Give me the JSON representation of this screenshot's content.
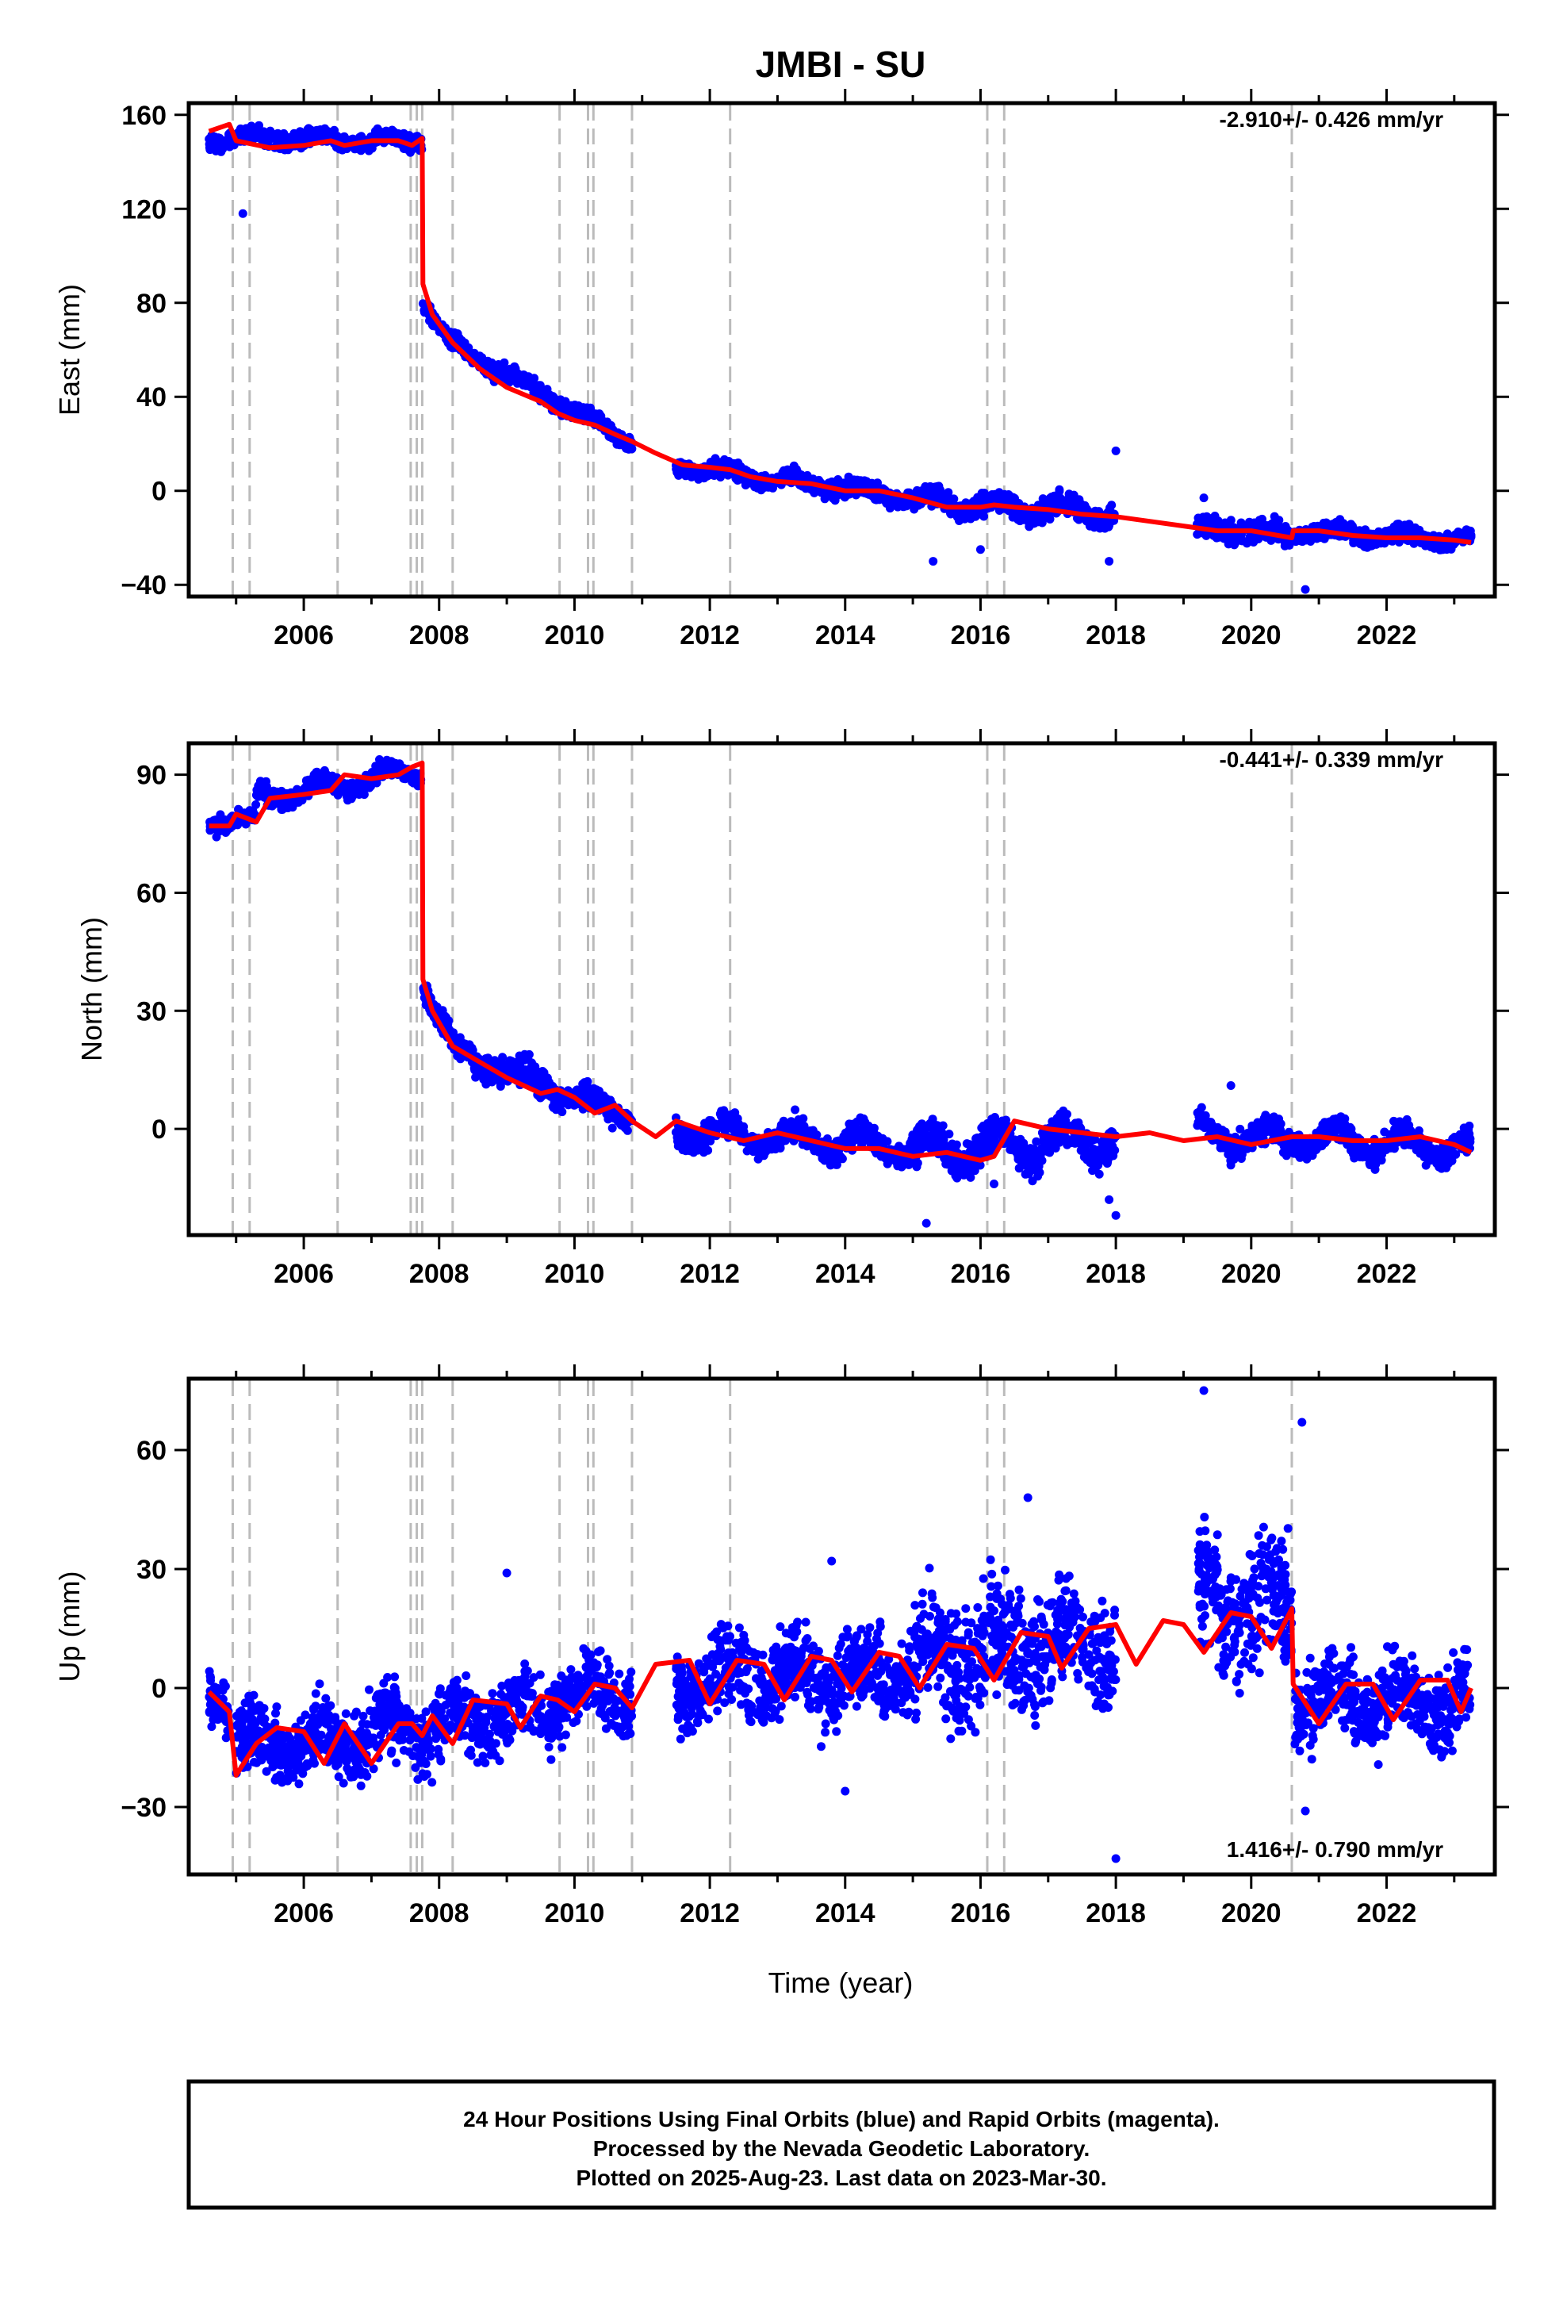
{
  "title": "JMBI - SU",
  "xlabel": "Time (year)",
  "footer": {
    "line1": "24 Hour Positions Using Final Orbits (blue) and Rapid Orbits (magenta).",
    "line2": "Processed by the Nevada Geodetic Laboratory.",
    "line3": "Plotted on 2025-Aug-23. Last data on 2023-Mar-30."
  },
  "colors": {
    "points": "#0000ff",
    "model": "#ff0000",
    "steps": "#bbbbbb"
  },
  "chart_data": [
    {
      "type": "scatter",
      "component": "east",
      "ylabel": "East (mm)",
      "rate": "-2.910+/- 0.426 mm/yr",
      "xlim": [
        2004.3,
        2023.6
      ],
      "ylim": [
        -45,
        165
      ],
      "yticks": [
        -40,
        0,
        40,
        80,
        120,
        160
      ],
      "yticklabels": [
        "−40",
        "0",
        "40",
        "80",
        "120",
        "160"
      ],
      "xticks": [
        2006,
        2008,
        2010,
        2012,
        2014,
        2016,
        2018,
        2020,
        2022
      ],
      "xticklabels": [
        "2006",
        "2008",
        "2010",
        "2012",
        "2014",
        "2016",
        "2018",
        "2020",
        "2022"
      ],
      "model": [
        [
          2004.6,
          153
        ],
        [
          2004.9,
          156
        ],
        [
          2005.0,
          149
        ],
        [
          2005.5,
          146
        ],
        [
          2006.0,
          147
        ],
        [
          2006.4,
          149
        ],
        [
          2006.6,
          147
        ],
        [
          2007.0,
          149
        ],
        [
          2007.4,
          149
        ],
        [
          2007.6,
          147
        ],
        [
          2007.75,
          150
        ],
        [
          2007.76,
          88
        ],
        [
          2007.9,
          75
        ],
        [
          2008.2,
          63
        ],
        [
          2008.6,
          52
        ],
        [
          2009.0,
          44
        ],
        [
          2009.5,
          38
        ],
        [
          2009.75,
          33
        ],
        [
          2010.0,
          30
        ],
        [
          2010.3,
          28
        ],
        [
          2010.6,
          24
        ],
        [
          2010.85,
          21
        ],
        [
          2011.2,
          16
        ],
        [
          2011.6,
          11
        ],
        [
          2012.0,
          10
        ],
        [
          2012.3,
          9
        ],
        [
          2012.6,
          6
        ],
        [
          2013.0,
          4
        ],
        [
          2013.5,
          3
        ],
        [
          2014.0,
          0
        ],
        [
          2014.5,
          0
        ],
        [
          2015.0,
          -3
        ],
        [
          2015.5,
          -7
        ],
        [
          2016.0,
          -7
        ],
        [
          2016.2,
          -6
        ],
        [
          2016.5,
          -7
        ],
        [
          2017.0,
          -8
        ],
        [
          2017.5,
          -10
        ],
        [
          2018.0,
          -11
        ],
        [
          2018.5,
          -13
        ],
        [
          2019.0,
          -15
        ],
        [
          2019.5,
          -17
        ],
        [
          2020.0,
          -17
        ],
        [
          2020.6,
          -20
        ],
        [
          2020.62,
          -17
        ],
        [
          2021.0,
          -17
        ],
        [
          2021.5,
          -19
        ],
        [
          2022.0,
          -20
        ],
        [
          2022.5,
          -20
        ],
        [
          2023.0,
          -21
        ],
        [
          2023.25,
          -22
        ]
      ],
      "points": {
        "segments": [
          {
            "x": [
              2004.6,
              2007.75
            ],
            "y": [
              150,
              149
            ],
            "spread": 3,
            "amp": 2
          },
          {
            "x": [
              2007.76,
              2008.2
            ],
            "y": [
              80,
              62
            ],
            "spread": 3,
            "amp": 1
          },
          {
            "x": [
              2008.2,
              2010.85
            ],
            "y": [
              62,
              21
            ],
            "spread": 3,
            "amp": 2
          },
          {
            "x": [
              2011.5,
              2015.0
            ],
            "y": [
              11,
              -3
            ],
            "spread": 3,
            "amp": 2
          },
          {
            "x": [
              2015.0,
              2018.0
            ],
            "y": [
              -4,
              -10
            ],
            "spread": 4,
            "amp": 3
          },
          {
            "x": [
              2019.2,
              2020.6
            ],
            "y": [
              -16,
              -19
            ],
            "spread": 4,
            "amp": 2
          },
          {
            "x": [
              2020.62,
              2023.25
            ],
            "y": [
              -17,
              -21
            ],
            "spread": 3,
            "amp": 2
          }
        ],
        "outliers": [
          [
            2005.1,
            118
          ],
          [
            2018.0,
            17
          ],
          [
            2019.3,
            -3
          ],
          [
            2020.8,
            -42
          ],
          [
            2015.3,
            -30
          ],
          [
            2017.9,
            -30
          ],
          [
            2016.0,
            -25
          ]
        ]
      }
    },
    {
      "type": "scatter",
      "component": "north",
      "ylabel": "North (mm)",
      "rate": "-0.441+/- 0.339 mm/yr",
      "xlim": [
        2004.3,
        2023.6
      ],
      "ylim": [
        -27,
        98
      ],
      "yticks": [
        0,
        30,
        60,
        90
      ],
      "yticklabels": [
        "0",
        "30",
        "60",
        "90"
      ],
      "xticks": [
        2006,
        2008,
        2010,
        2012,
        2014,
        2016,
        2018,
        2020,
        2022
      ],
      "xticklabels": [
        "2006",
        "2008",
        "2010",
        "2012",
        "2014",
        "2016",
        "2018",
        "2020",
        "2022"
      ],
      "model": [
        [
          2004.6,
          77
        ],
        [
          2004.9,
          77
        ],
        [
          2005.0,
          80
        ],
        [
          2005.3,
          78
        ],
        [
          2005.5,
          84
        ],
        [
          2006.0,
          85
        ],
        [
          2006.4,
          86
        ],
        [
          2006.6,
          90
        ],
        [
          2007.0,
          89
        ],
        [
          2007.4,
          90
        ],
        [
          2007.6,
          92
        ],
        [
          2007.75,
          93
        ],
        [
          2007.76,
          38
        ],
        [
          2007.9,
          30
        ],
        [
          2008.2,
          21
        ],
        [
          2008.6,
          17
        ],
        [
          2009.0,
          13
        ],
        [
          2009.5,
          9
        ],
        [
          2009.75,
          10
        ],
        [
          2010.0,
          8
        ],
        [
          2010.3,
          4
        ],
        [
          2010.6,
          6
        ],
        [
          2010.85,
          2
        ],
        [
          2011.2,
          -2
        ],
        [
          2011.5,
          2
        ],
        [
          2012.0,
          -1
        ],
        [
          2012.5,
          -3
        ],
        [
          2013.0,
          -1
        ],
        [
          2013.5,
          -3
        ],
        [
          2014.0,
          -5
        ],
        [
          2014.5,
          -5
        ],
        [
          2015.0,
          -7
        ],
        [
          2015.5,
          -6
        ],
        [
          2016.0,
          -8
        ],
        [
          2016.2,
          -7
        ],
        [
          2016.5,
          2
        ],
        [
          2017.0,
          0
        ],
        [
          2017.5,
          -1
        ],
        [
          2018.0,
          -2
        ],
        [
          2018.5,
          -1
        ],
        [
          2019.0,
          -3
        ],
        [
          2019.5,
          -2
        ],
        [
          2020.0,
          -4
        ],
        [
          2020.6,
          -2
        ],
        [
          2021.0,
          -2
        ],
        [
          2021.5,
          -3
        ],
        [
          2022.0,
          -3
        ],
        [
          2022.5,
          -2
        ],
        [
          2023.0,
          -4
        ],
        [
          2023.25,
          -6
        ]
      ],
      "points": {
        "segments": [
          {
            "x": [
              2004.6,
              2005.3
            ],
            "y": [
              78,
              79
            ],
            "spread": 2,
            "amp": 1
          },
          {
            "x": [
              2005.3,
              2007.75
            ],
            "y": [
              84,
              91
            ],
            "spread": 2,
            "amp": 2
          },
          {
            "x": [
              2007.76,
              2008.3
            ],
            "y": [
              36,
              19
            ],
            "spread": 3,
            "amp": 1
          },
          {
            "x": [
              2008.3,
              2010.85
            ],
            "y": [
              19,
              3
            ],
            "spread": 3,
            "amp": 2
          },
          {
            "x": [
              2011.5,
              2015.0
            ],
            "y": [
              0,
              -5
            ],
            "spread": 3,
            "amp": 3
          },
          {
            "x": [
              2015.0,
              2018.0
            ],
            "y": [
              -6,
              -2
            ],
            "spread": 4,
            "amp": 4
          },
          {
            "x": [
              2019.2,
              2020.6
            ],
            "y": [
              -1,
              -3
            ],
            "spread": 3,
            "amp": 3
          },
          {
            "x": [
              2020.62,
              2023.25
            ],
            "y": [
              -2,
              -5
            ],
            "spread": 3,
            "amp": 3
          }
        ],
        "outliers": [
          [
            2019.7,
            11
          ],
          [
            2015.2,
            -24
          ],
          [
            2018.0,
            -22
          ],
          [
            2017.9,
            -18
          ],
          [
            2016.2,
            -14
          ]
        ]
      }
    },
    {
      "type": "scatter",
      "component": "up",
      "ylabel": "Up (mm)",
      "rate": "1.416+/- 0.790 mm/yr",
      "xlim": [
        2004.3,
        2023.6
      ],
      "ylim": [
        -47,
        78
      ],
      "yticks": [
        -30,
        0,
        30,
        60
      ],
      "yticklabels": [
        "−30",
        "0",
        "30",
        "60"
      ],
      "xticks": [
        2006,
        2008,
        2010,
        2012,
        2014,
        2016,
        2018,
        2020,
        2022
      ],
      "xticklabels": [
        "2006",
        "2008",
        "2010",
        "2012",
        "2014",
        "2016",
        "2018",
        "2020",
        "2022"
      ],
      "model": [
        [
          2004.6,
          -1
        ],
        [
          2004.9,
          -6
        ],
        [
          2005.0,
          -22
        ],
        [
          2005.3,
          -14
        ],
        [
          2005.6,
          -10
        ],
        [
          2006.0,
          -11
        ],
        [
          2006.3,
          -19
        ],
        [
          2006.6,
          -9
        ],
        [
          2007.0,
          -19
        ],
        [
          2007.4,
          -9
        ],
        [
          2007.6,
          -9
        ],
        [
          2007.75,
          -12
        ],
        [
          2007.9,
          -7
        ],
        [
          2008.2,
          -14
        ],
        [
          2008.5,
          -3
        ],
        [
          2009.0,
          -4
        ],
        [
          2009.2,
          -10
        ],
        [
          2009.5,
          -2
        ],
        [
          2009.75,
          -3
        ],
        [
          2010.0,
          -6
        ],
        [
          2010.3,
          1
        ],
        [
          2010.6,
          0
        ],
        [
          2010.85,
          -5
        ],
        [
          2011.2,
          6
        ],
        [
          2011.7,
          7
        ],
        [
          2012.0,
          -4
        ],
        [
          2012.4,
          7
        ],
        [
          2012.8,
          6
        ],
        [
          2013.1,
          -3
        ],
        [
          2013.5,
          8
        ],
        [
          2013.8,
          7
        ],
        [
          2014.1,
          -1
        ],
        [
          2014.5,
          9
        ],
        [
          2014.8,
          8
        ],
        [
          2015.1,
          0
        ],
        [
          2015.5,
          11
        ],
        [
          2015.9,
          10
        ],
        [
          2016.2,
          2
        ],
        [
          2016.6,
          14
        ],
        [
          2017.0,
          13
        ],
        [
          2017.2,
          5
        ],
        [
          2017.6,
          15
        ],
        [
          2018.0,
          16
        ],
        [
          2018.3,
          6
        ],
        [
          2018.7,
          17
        ],
        [
          2019.0,
          16
        ],
        [
          2019.3,
          9
        ],
        [
          2019.7,
          19
        ],
        [
          2020.0,
          18
        ],
        [
          2020.3,
          10
        ],
        [
          2020.6,
          20
        ],
        [
          2020.62,
          1
        ],
        [
          2021.0,
          -9
        ],
        [
          2021.4,
          1
        ],
        [
          2021.8,
          1
        ],
        [
          2022.1,
          -8
        ],
        [
          2022.5,
          2
        ],
        [
          2022.9,
          2
        ],
        [
          2023.1,
          -6
        ],
        [
          2023.25,
          0
        ]
      ],
      "points": {
        "segments": [
          {
            "x": [
              2004.6,
              2004.9
            ],
            "y": [
              -1,
              -4
            ],
            "spread": 7,
            "amp": 2
          },
          {
            "x": [
              2005.0,
              2009.7
            ],
            "y": [
              -15,
              -6
            ],
            "spread": 8,
            "amp": 4
          },
          {
            "x": [
              2009.7,
              2010.85
            ],
            "y": [
              -2,
              -1
            ],
            "spread": 8,
            "amp": 3
          },
          {
            "x": [
              2011.5,
              2015.0
            ],
            "y": [
              2,
              4
            ],
            "spread": 9,
            "amp": 4
          },
          {
            "x": [
              2015.0,
              2018.0
            ],
            "y": [
              7,
              12
            ],
            "spread": 13,
            "amp": 5
          },
          {
            "x": [
              2019.2,
              2020.6
            ],
            "y": [
              22,
              20
            ],
            "spread": 14,
            "amp": 6
          },
          {
            "x": [
              2020.62,
              2023.25
            ],
            "y": [
              -3,
              -3
            ],
            "spread": 9,
            "amp": 4
          }
        ],
        "outliers": [
          [
            2019.3,
            75
          ],
          [
            2020.75,
            67
          ],
          [
            2018.0,
            -43
          ],
          [
            2014.0,
            -26
          ],
          [
            2013.8,
            32
          ],
          [
            2016.7,
            48
          ],
          [
            2020.8,
            -31
          ],
          [
            2009.0,
            29
          ]
        ]
      }
    }
  ],
  "step_epochs": [
    2004.95,
    2005.2,
    2006.5,
    2007.58,
    2007.67,
    2007.75,
    2008.2,
    2009.78,
    2010.2,
    2010.28,
    2010.85,
    2012.3,
    2016.1,
    2016.35,
    2020.6
  ]
}
